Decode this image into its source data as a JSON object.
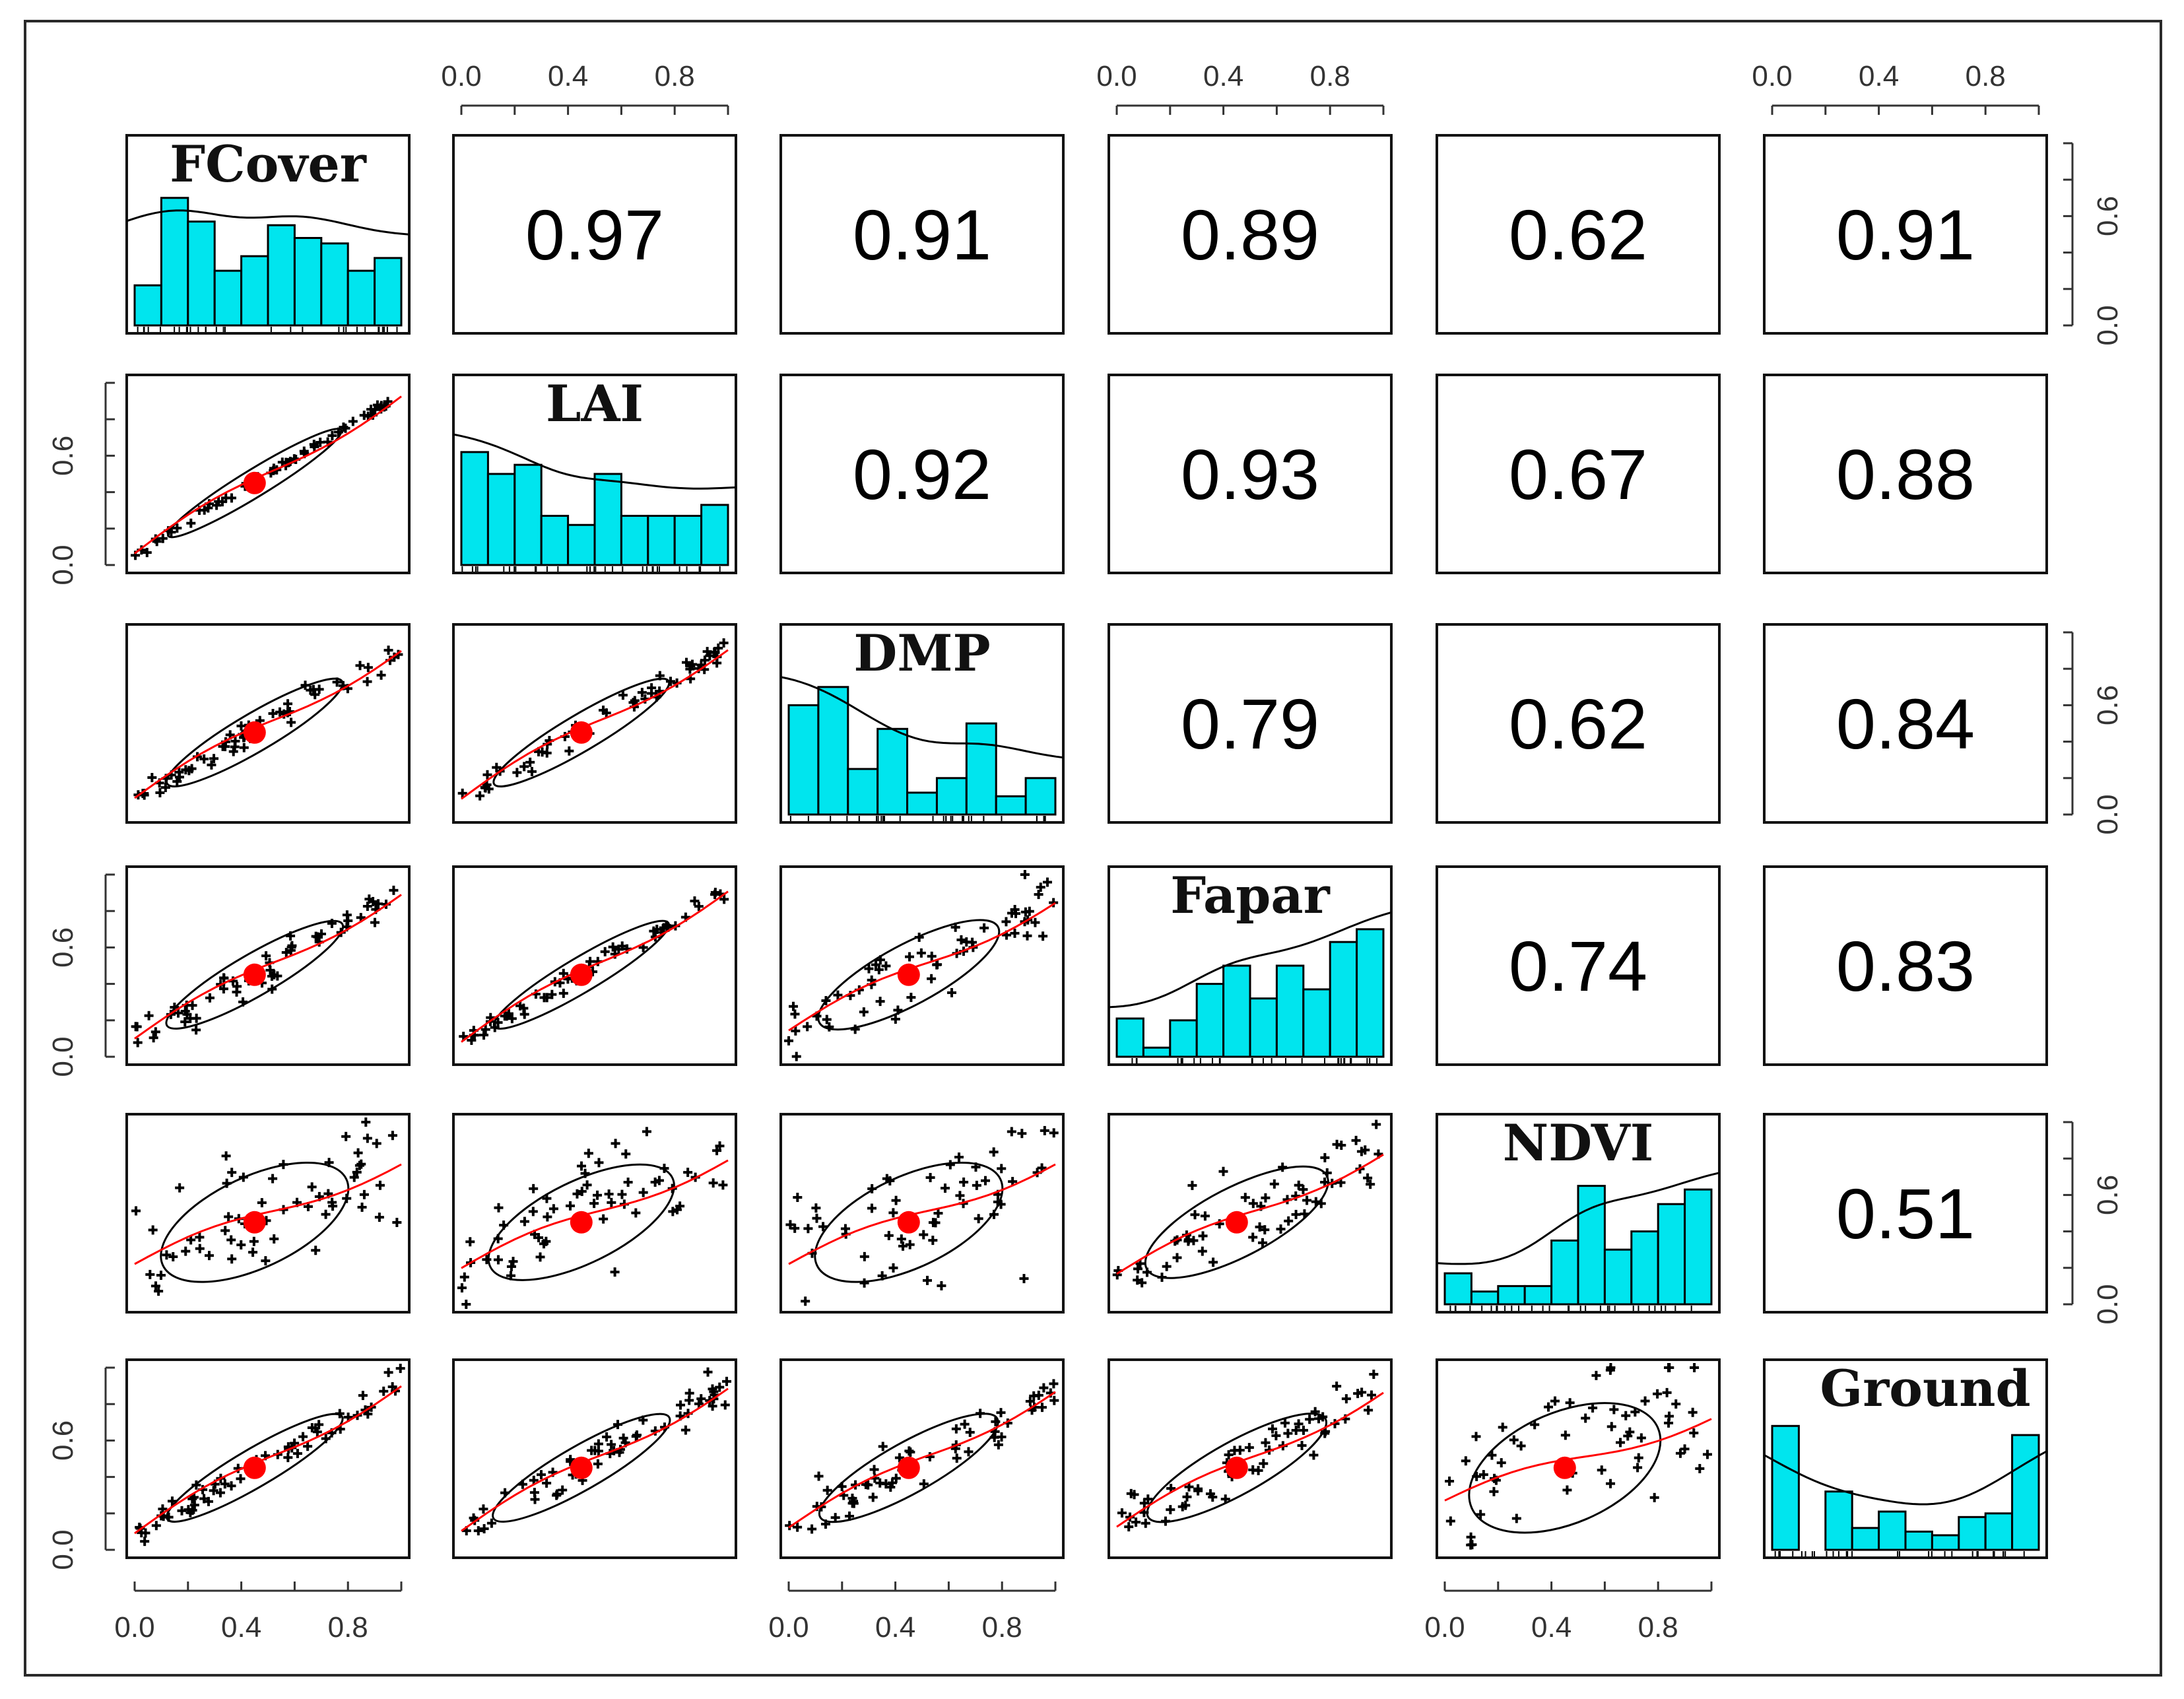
{
  "chart_data": {
    "type": "scatter",
    "title": "",
    "variables": [
      "FCover",
      "LAI",
      "DMP",
      "Fapar",
      "NDVI",
      "Ground"
    ],
    "axis_ticks": [
      "0.0",
      "0.4",
      "0.8"
    ],
    "side_ticks": [
      "0.0",
      "0.6"
    ],
    "xlim": [
      0,
      1
    ],
    "ylim": [
      0,
      1
    ],
    "correlations": [
      {
        "row": 0,
        "col": 1,
        "value": "0.97"
      },
      {
        "row": 0,
        "col": 2,
        "value": "0.91"
      },
      {
        "row": 0,
        "col": 3,
        "value": "0.89"
      },
      {
        "row": 0,
        "col": 4,
        "value": "0.62"
      },
      {
        "row": 0,
        "col": 5,
        "value": "0.91"
      },
      {
        "row": 1,
        "col": 2,
        "value": "0.92"
      },
      {
        "row": 1,
        "col": 3,
        "value": "0.93"
      },
      {
        "row": 1,
        "col": 4,
        "value": "0.67"
      },
      {
        "row": 1,
        "col": 5,
        "value": "0.88"
      },
      {
        "row": 2,
        "col": 3,
        "value": "0.79"
      },
      {
        "row": 2,
        "col": 4,
        "value": "0.62"
      },
      {
        "row": 2,
        "col": 5,
        "value": "0.84"
      },
      {
        "row": 3,
        "col": 4,
        "value": "0.74"
      },
      {
        "row": 3,
        "col": 5,
        "value": "0.83"
      },
      {
        "row": 4,
        "col": 5,
        "value": "0.51"
      }
    ],
    "histograms": {
      "FCover": [
        0.22,
        0.7,
        0.57,
        0.3,
        0.38,
        0.55,
        0.48,
        0.45,
        0.3,
        0.37
      ],
      "LAI": [
        0.62,
        0.5,
        0.55,
        0.27,
        0.22,
        0.5,
        0.27,
        0.27,
        0.27,
        0.33
      ],
      "DMP": [
        0.6,
        0.7,
        0.25,
        0.47,
        0.12,
        0.2,
        0.5,
        0.1,
        0.2
      ],
      "Fapar": [
        0.21,
        0.05,
        0.2,
        0.4,
        0.5,
        0.32,
        0.5,
        0.37,
        0.63,
        0.7
      ],
      "NDVI": [
        0.17,
        0.07,
        0.1,
        0.1,
        0.35,
        0.65,
        0.3,
        0.4,
        0.55,
        0.63
      ],
      "Ground": [
        0.68,
        0.0,
        0.32,
        0.12,
        0.21,
        0.1,
        0.08,
        0.18,
        0.2,
        0.63
      ]
    }
  }
}
